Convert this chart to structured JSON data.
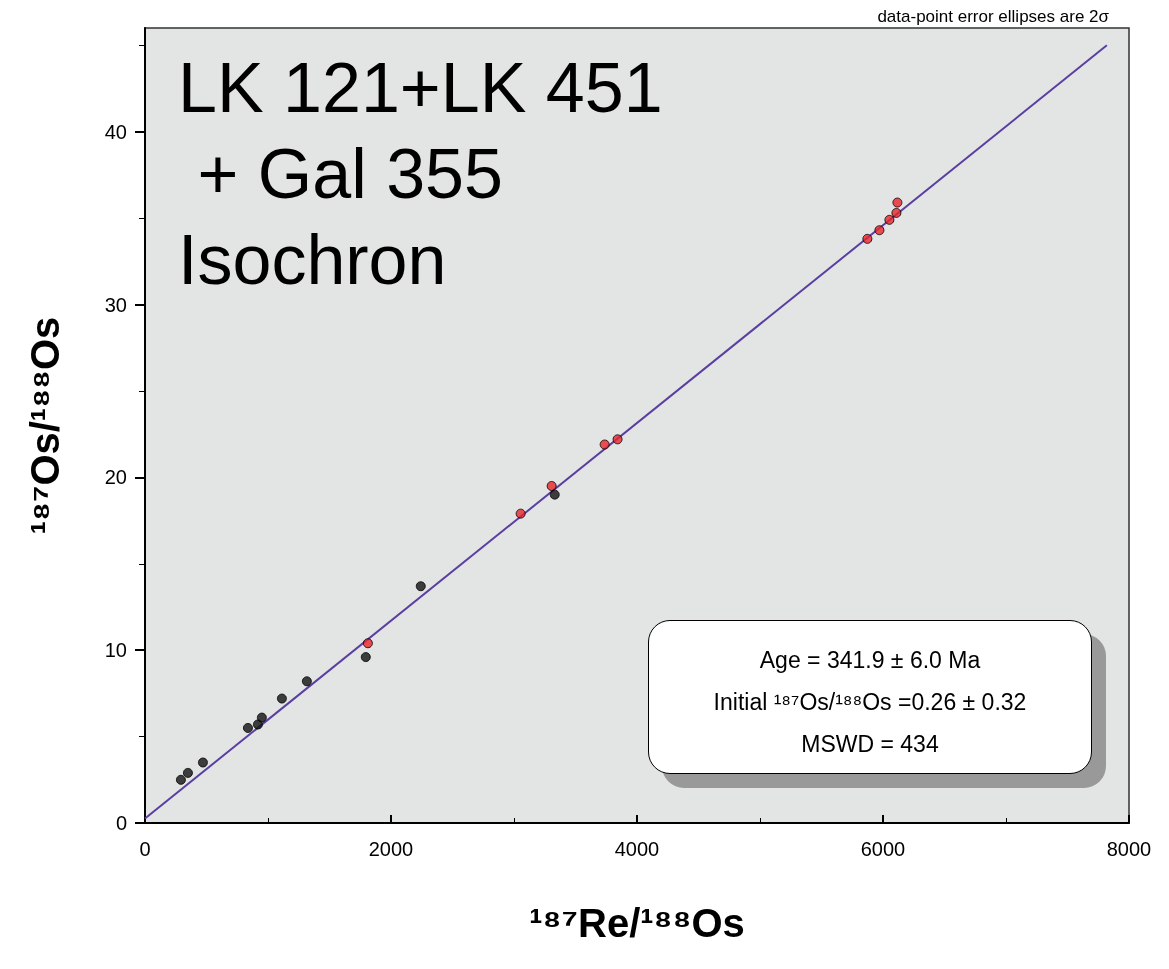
{
  "chart_data": {
    "type": "scatter",
    "title": "LK 121+LK 451 + Gal 355 Isochron",
    "xlabel": "¹⁸⁷Re/¹⁸⁸Os",
    "ylabel": "¹⁸⁷Os/¹⁸⁸Os",
    "xlim": [
      0,
      8000
    ],
    "xticks": [
      0,
      2000,
      4000,
      6000,
      8000
    ],
    "ylim": [
      0,
      46
    ],
    "yticks": [
      0,
      10,
      20,
      30,
      40
    ],
    "grid": false,
    "series": [
      {
        "marker": "circle",
        "colors": [
          "#111111",
          "#111111",
          "#111111",
          "#111111",
          "#111111",
          "#111111",
          "#111111",
          "#111111",
          "#e8262b",
          "#111111",
          "#111111",
          "#e8262b",
          "#e8262b",
          "#111111",
          "#e8262b",
          "#e8262b",
          "#e8262b",
          "#e8262b",
          "#e8262b",
          "#e8262b",
          "#e8262b"
        ],
        "x": [
          292,
          349,
          471,
          837,
          918,
          950,
          1113,
          1316,
          1812,
          1795,
          2242,
          3054,
          3306,
          3331,
          3737,
          3842,
          6117,
          6109,
          6052,
          5971,
          5873
        ],
        "values": [
          2.5,
          2.9,
          3.5,
          5.5,
          5.7,
          6.1,
          7.2,
          8.2,
          10.4,
          9.6,
          13.7,
          17.9,
          19.5,
          19.0,
          21.9,
          22.2,
          35.9,
          35.3,
          34.9,
          34.3,
          33.8
        ]
      },
      {
        "type": "line",
        "marker": "none",
        "color": "#5b3fa0",
        "x": [
          0,
          7820
        ],
        "values": [
          0.26,
          45
        ]
      }
    ],
    "annotations": [
      "data-point error ellipses are 2σ",
      "Age = 341.9 ± 6.0 Ma",
      "Initial ¹⁸⁷Os/¹⁸⁸Os =0.26 ± 0.32",
      "MSWD = 434"
    ]
  }
}
